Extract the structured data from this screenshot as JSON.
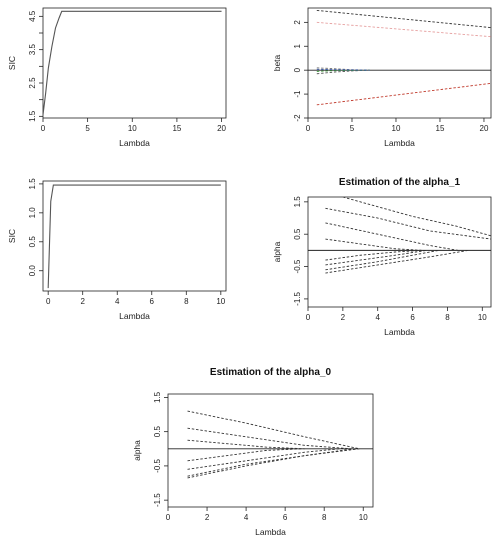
{
  "chart_data": [
    {
      "id": "p1",
      "type": "line",
      "title": "",
      "xlabel": "Lambda",
      "ylabel": "SIC",
      "xlim": [
        0,
        20.5
      ],
      "ylim": [
        1.45,
        4.75
      ],
      "xticks": [
        0,
        5,
        10,
        15,
        20
      ],
      "yticks": [
        1.5,
        2.5,
        3.5,
        4.5
      ],
      "xticklabels": [
        "0",
        "5",
        "10",
        "15",
        "20"
      ],
      "yticklabels": [
        "1.5",
        "2.5",
        "3.5",
        "4.5"
      ],
      "minor_yticks": [
        2.0,
        3.0,
        4.0
      ],
      "hlines": [],
      "series": [
        {
          "color": "#555555",
          "dash": false,
          "x": [
            0,
            0.3,
            0.6,
            1.0,
            1.4,
            1.8,
            2.1,
            20
          ],
          "y": [
            1.55,
            2.2,
            2.95,
            3.6,
            4.15,
            4.45,
            4.65,
            4.65
          ]
        }
      ]
    },
    {
      "id": "p2",
      "type": "line",
      "title": "",
      "xlabel": "Lambda",
      "ylabel": "beta",
      "xlim": [
        0,
        20.8
      ],
      "ylim": [
        -2,
        2.6
      ],
      "xticks": [
        0,
        5,
        10,
        15,
        20
      ],
      "yticks": [
        -2,
        -1,
        0,
        1,
        2
      ],
      "xticklabels": [
        "0",
        "5",
        "10",
        "15",
        "20"
      ],
      "yticklabels": [
        "-2",
        "-1",
        "0",
        "1",
        "2"
      ],
      "minor_yticks": [],
      "hlines": [
        {
          "y": 0,
          "color": "#222222"
        }
      ],
      "series": [
        {
          "color": "#333333",
          "dash": true,
          "x": [
            1,
            20.8
          ],
          "y": [
            2.5,
            1.78
          ]
        },
        {
          "color": "#e6a0a0",
          "dash": true,
          "x": [
            1,
            20.8
          ],
          "y": [
            2.0,
            1.4
          ]
        },
        {
          "color": "#c0392b",
          "dash": true,
          "x": [
            1,
            20.8
          ],
          "y": [
            -1.45,
            -0.55
          ]
        },
        {
          "color": "#555555",
          "dash": true,
          "x": [
            1,
            3,
            5,
            7
          ],
          "y": [
            -0.15,
            -0.08,
            -0.03,
            0
          ]
        },
        {
          "color": "#777777",
          "dash": true,
          "x": [
            1,
            3,
            5,
            7
          ],
          "y": [
            0.1,
            0.06,
            0.02,
            0
          ]
        },
        {
          "color": "#3d9b3d",
          "dash": true,
          "x": [
            1,
            3,
            5,
            7
          ],
          "y": [
            -0.05,
            -0.02,
            -0.01,
            0
          ]
        },
        {
          "color": "#3355aa",
          "dash": true,
          "x": [
            1,
            3,
            5,
            7
          ],
          "y": [
            0.04,
            0.02,
            0.01,
            0
          ]
        }
      ]
    },
    {
      "id": "p3",
      "type": "line",
      "title": "",
      "xlabel": "Lambda",
      "ylabel": "SIC",
      "xlim": [
        -0.3,
        10.3
      ],
      "ylim": [
        -0.35,
        1.55
      ],
      "xticks": [
        0,
        2,
        4,
        6,
        8,
        10
      ],
      "yticks": [
        0.0,
        0.5,
        1.0,
        1.5
      ],
      "xticklabels": [
        "0",
        "2",
        "4",
        "6",
        "8",
        "10"
      ],
      "yticklabels": [
        "0.0",
        "0.5",
        "1.0",
        "1.5"
      ],
      "minor_yticks": [],
      "hlines": [],
      "series": [
        {
          "color": "#555555",
          "dash": false,
          "x": [
            0,
            0.15,
            0.3,
            10
          ],
          "y": [
            -0.3,
            1.2,
            1.48,
            1.48
          ]
        }
      ]
    },
    {
      "id": "p4",
      "type": "line",
      "title": "Estimation of the alpha_1",
      "xlabel": "Lambda",
      "ylabel": "alpha",
      "xlim": [
        0,
        10.5
      ],
      "ylim": [
        -1.75,
        1.65
      ],
      "xticks": [
        0,
        2,
        4,
        6,
        8,
        10
      ],
      "yticks": [
        -1.5,
        -0.5,
        0.5,
        1.5
      ],
      "xticklabels": [
        "0",
        "2",
        "4",
        "6",
        "8",
        "10"
      ],
      "yticklabels": [
        "-1.5",
        "-0.5",
        "0.5",
        "1.5"
      ],
      "minor_yticks": [],
      "hlines": [
        {
          "y": 0,
          "color": "#222222"
        }
      ],
      "series": [
        {
          "color": "#333333",
          "dash": true,
          "x": [
            2,
            6,
            8.5,
            10.5
          ],
          "y": [
            1.65,
            1.05,
            0.75,
            0.45
          ]
        },
        {
          "color": "#333333",
          "dash": true,
          "x": [
            1,
            4,
            7,
            10.5
          ],
          "y": [
            1.3,
            1.0,
            0.6,
            0.35
          ]
        },
        {
          "color": "#333333",
          "dash": true,
          "x": [
            1,
            4,
            7,
            8.6
          ],
          "y": [
            0.85,
            0.5,
            0.15,
            0
          ]
        },
        {
          "color": "#333333",
          "dash": true,
          "x": [
            1,
            3,
            5,
            6.5
          ],
          "y": [
            0.35,
            0.2,
            0.05,
            0
          ]
        },
        {
          "color": "#333333",
          "dash": true,
          "x": [
            1,
            3,
            5,
            6.5
          ],
          "y": [
            -0.3,
            -0.15,
            -0.05,
            0
          ]
        },
        {
          "color": "#333333",
          "dash": true,
          "x": [
            1,
            3,
            5,
            6.8
          ],
          "y": [
            -0.45,
            -0.3,
            -0.15,
            0
          ]
        },
        {
          "color": "#333333",
          "dash": true,
          "x": [
            1,
            4,
            6,
            7.5
          ],
          "y": [
            -0.6,
            -0.35,
            -0.15,
            0
          ]
        },
        {
          "color": "#333333",
          "dash": true,
          "x": [
            1,
            4,
            7,
            9.2
          ],
          "y": [
            -0.7,
            -0.45,
            -0.2,
            0
          ]
        }
      ]
    },
    {
      "id": "p5",
      "type": "line",
      "title": "Estimation of the alpha_0",
      "xlabel": "Lambda",
      "ylabel": "alpha",
      "xlim": [
        0,
        10.5
      ],
      "ylim": [
        -1.7,
        1.6
      ],
      "xticks": [
        0,
        2,
        4,
        6,
        8,
        10
      ],
      "yticks": [
        -1.5,
        -0.5,
        0.5,
        1.5
      ],
      "xticklabels": [
        "0",
        "2",
        "4",
        "6",
        "8",
        "10"
      ],
      "yticklabels": [
        "-1.5",
        "-0.5",
        "0.5",
        "1.5"
      ],
      "minor_yticks": [],
      "hlines": [
        {
          "y": 0,
          "color": "#222222"
        }
      ],
      "series": [
        {
          "color": "#333333",
          "dash": true,
          "x": [
            1,
            4,
            7,
            9.8
          ],
          "y": [
            1.1,
            0.75,
            0.35,
            0
          ]
        },
        {
          "color": "#333333",
          "dash": true,
          "x": [
            1,
            4,
            7,
            9.4
          ],
          "y": [
            0.6,
            0.35,
            0.1,
            0
          ]
        },
        {
          "color": "#333333",
          "dash": true,
          "x": [
            1,
            3,
            5,
            7
          ],
          "y": [
            0.25,
            0.15,
            0.05,
            0
          ]
        },
        {
          "color": "#333333",
          "dash": true,
          "x": [
            1,
            3,
            5,
            6.8
          ],
          "y": [
            -0.35,
            -0.2,
            -0.05,
            0
          ]
        },
        {
          "color": "#333333",
          "dash": true,
          "x": [
            1,
            4,
            7,
            8.8
          ],
          "y": [
            -0.6,
            -0.35,
            -0.1,
            0
          ]
        },
        {
          "color": "#333333",
          "dash": true,
          "x": [
            1,
            4,
            7,
            9.5
          ],
          "y": [
            -0.85,
            -0.5,
            -0.2,
            0
          ]
        },
        {
          "color": "#333333",
          "dash": true,
          "x": [
            1,
            4,
            7,
            9.8
          ],
          "y": [
            -0.8,
            -0.45,
            -0.2,
            0
          ]
        }
      ]
    }
  ]
}
